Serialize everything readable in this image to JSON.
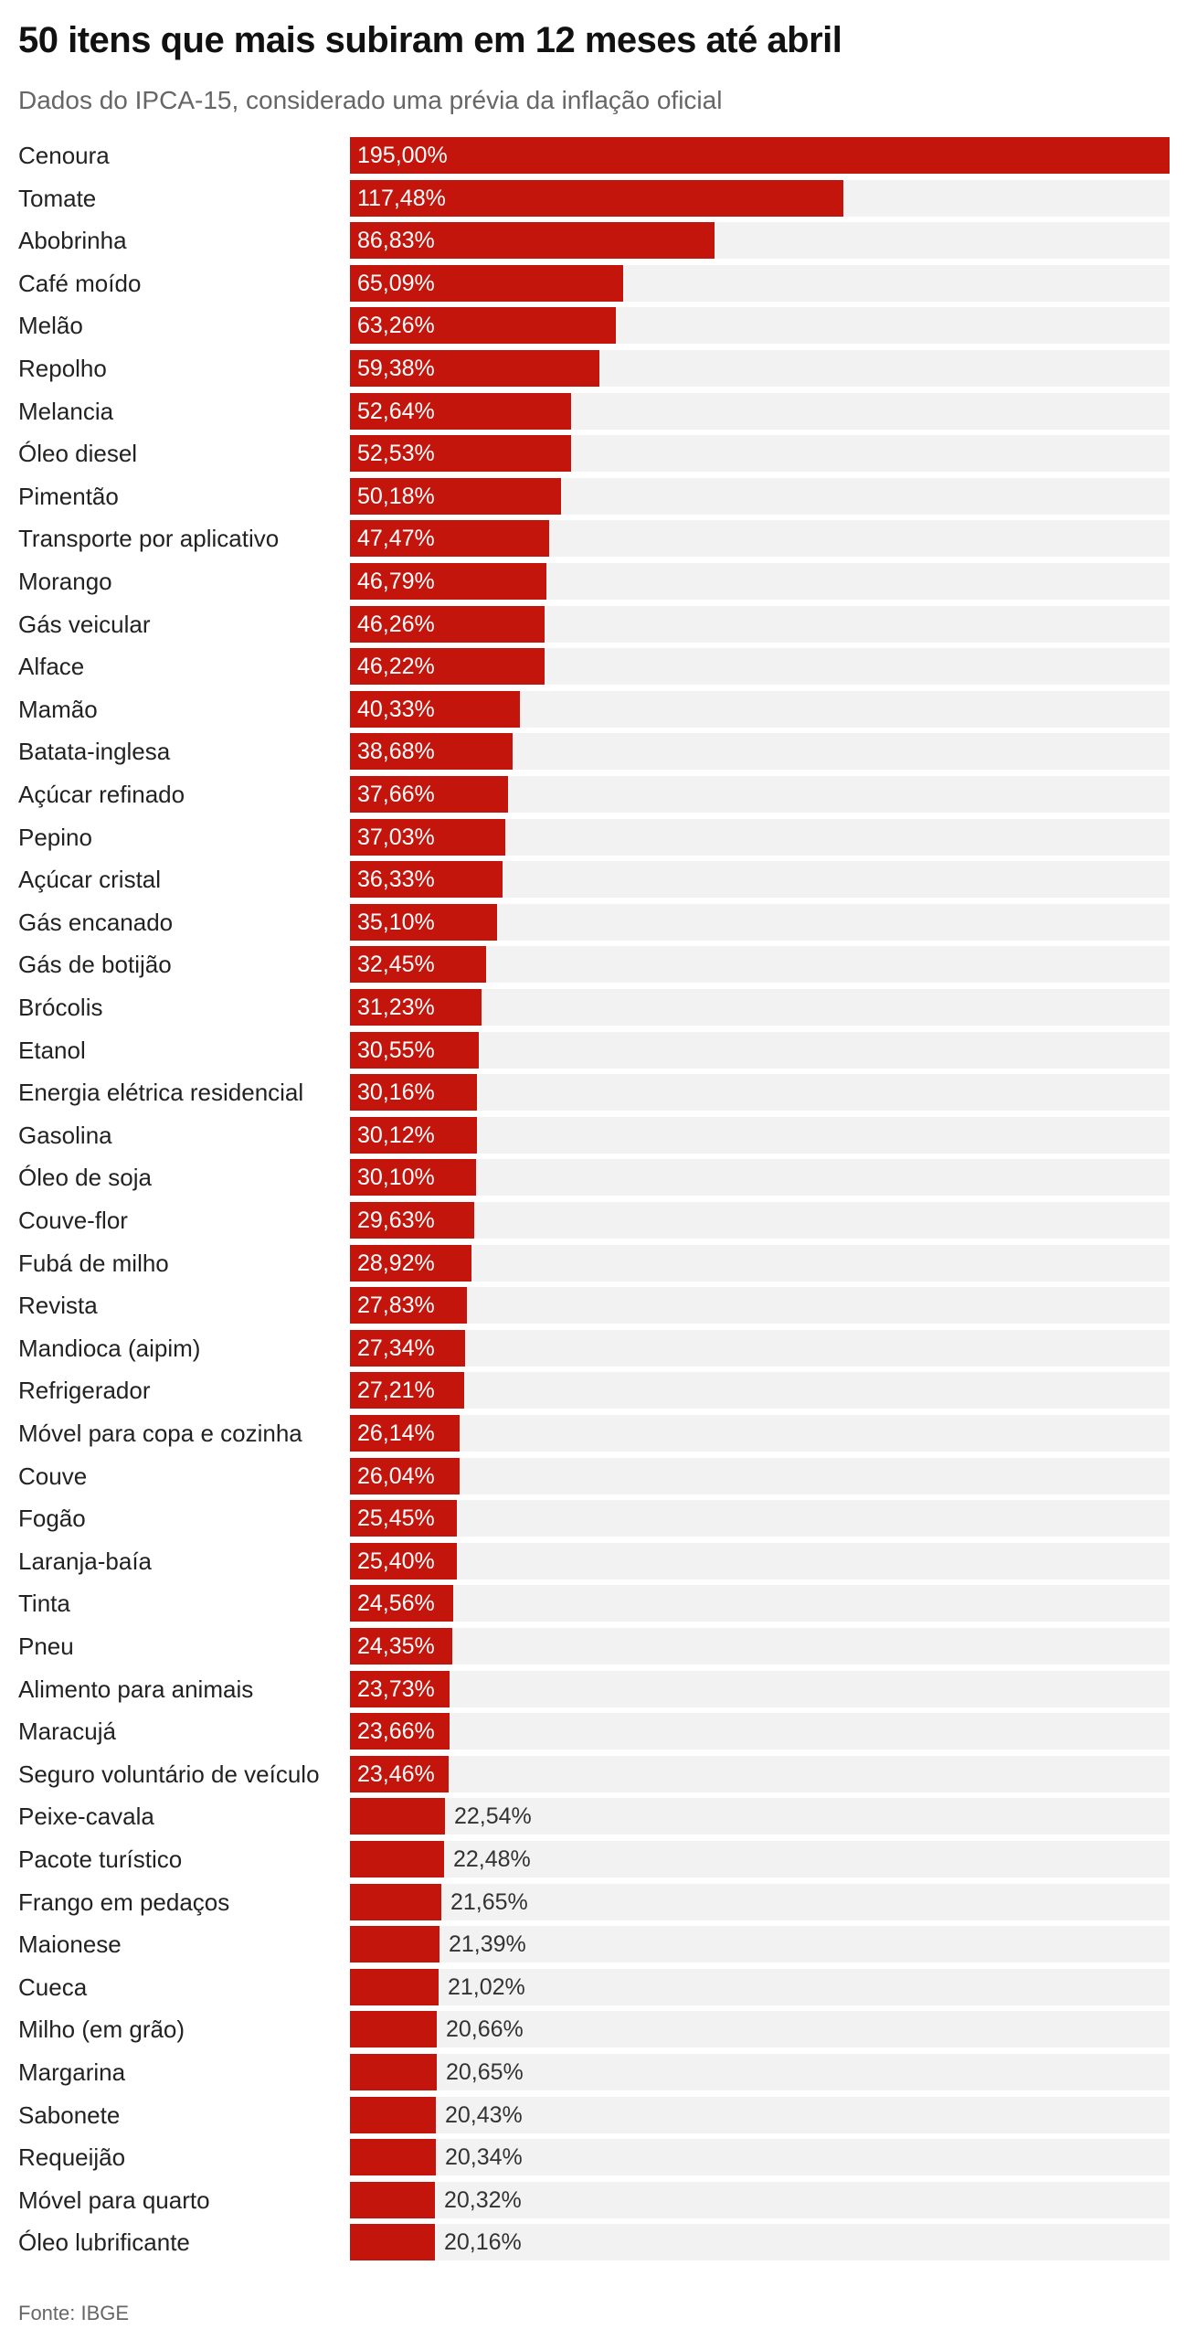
{
  "colors": {
    "bar": "#c4150d",
    "track": "#f2f2f2",
    "inside_label": "#ffffff",
    "outside_label": "#333333"
  },
  "source": "Fonte: IBGE",
  "chart_data": {
    "type": "bar",
    "orientation": "horizontal",
    "title": "50 itens que mais subiram em 12 meses até abril",
    "subtitle": "Dados do IPCA-15, considerado uma prévia da inflação oficial",
    "xlabel": "",
    "ylabel": "",
    "xlim": [
      0,
      195
    ],
    "grid": false,
    "categories": [
      "Cenoura",
      "Tomate",
      "Abobrinha",
      "Café moído",
      "Melão",
      "Repolho",
      "Melancia",
      "Óleo diesel",
      "Pimentão",
      "Transporte por aplicativo",
      "Morango",
      "Gás veicular",
      "Alface",
      "Mamão",
      "Batata-inglesa",
      "Açúcar refinado",
      "Pepino",
      "Açúcar cristal",
      "Gás encanado",
      "Gás de botijão",
      "Brócolis",
      "Etanol",
      "Energia elétrica residencial",
      "Gasolina",
      "Óleo de soja",
      "Couve-flor",
      "Fubá de milho",
      "Revista",
      "Mandioca (aipim)",
      "Refrigerador",
      "Móvel para copa e cozinha",
      "Couve",
      "Fogão",
      "Laranja-baía",
      "Tinta",
      "Pneu",
      "Alimento para animais",
      "Maracujá",
      "Seguro voluntário de veículo",
      "Peixe-cavala",
      "Pacote turístico",
      "Frango em pedaços",
      "Maionese",
      "Cueca",
      "Milho (em grão)",
      "Margarina",
      "Sabonete",
      "Requeijão",
      "Móvel para quarto",
      "Óleo lubrificante"
    ],
    "values": [
      195.0,
      117.48,
      86.83,
      65.09,
      63.26,
      59.38,
      52.64,
      52.53,
      50.18,
      47.47,
      46.79,
      46.26,
      46.22,
      40.33,
      38.68,
      37.66,
      37.03,
      36.33,
      35.1,
      32.45,
      31.23,
      30.55,
      30.16,
      30.12,
      30.1,
      29.63,
      28.92,
      27.83,
      27.34,
      27.21,
      26.14,
      26.04,
      25.45,
      25.4,
      24.56,
      24.35,
      23.73,
      23.66,
      23.46,
      22.54,
      22.48,
      21.65,
      21.39,
      21.02,
      20.66,
      20.65,
      20.43,
      20.34,
      20.32,
      20.16
    ],
    "value_labels": [
      "195,00%",
      "117,48%",
      "86,83%",
      "65,09%",
      "63,26%",
      "59,38%",
      "52,64%",
      "52,53%",
      "50,18%",
      "47,47%",
      "46,79%",
      "46,26%",
      "46,22%",
      "40,33%",
      "38,68%",
      "37,66%",
      "37,03%",
      "36,33%",
      "35,10%",
      "32,45%",
      "31,23%",
      "30,55%",
      "30,16%",
      "30,12%",
      "30,10%",
      "29,63%",
      "28,92%",
      "27,83%",
      "27,34%",
      "27,21%",
      "26,14%",
      "26,04%",
      "25,45%",
      "25,40%",
      "24,56%",
      "24,35%",
      "23,73%",
      "23,66%",
      "23,46%",
      "22,54%",
      "22,48%",
      "21,65%",
      "21,39%",
      "21,02%",
      "20,66%",
      "20,65%",
      "20,43%",
      "20,34%",
      "20,32%",
      "20,16%"
    ],
    "unit": "%"
  }
}
